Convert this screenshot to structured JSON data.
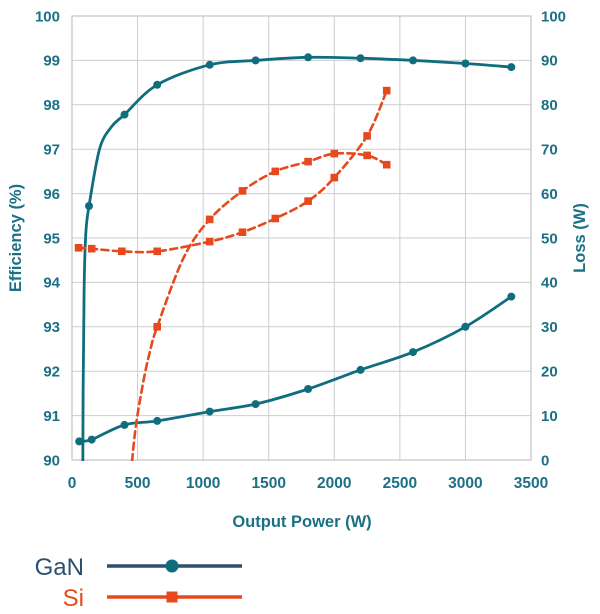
{
  "colors": {
    "gan": "#0f6e7d",
    "si": "#e5491d",
    "gan_legend": "#2d4f6e",
    "si_legend": "#e5491d",
    "axis_label": "#1b7086",
    "grid": "#cbcecf",
    "border": "#c0c4c5",
    "background": "#ffffff"
  },
  "chart_data": {
    "type": "line",
    "title": "",
    "xlabel": "Output Power (W)",
    "ylabel_left": "Efficiency (%)",
    "ylabel_right": "Loss (W)",
    "x_range": [
      0,
      3500
    ],
    "x_ticks": [
      0,
      500,
      1000,
      1500,
      2000,
      2500,
      3000,
      3500
    ],
    "y_left_range": [
      90,
      100
    ],
    "y_left_ticks": [
      90,
      91,
      92,
      93,
      94,
      95,
      96,
      97,
      98,
      99,
      100
    ],
    "y_right_range": [
      0,
      100
    ],
    "y_right_ticks": [
      0,
      10,
      20,
      30,
      40,
      50,
      60,
      70,
      80,
      90,
      100
    ],
    "grid": true,
    "legend_position": "bottom-left",
    "series": [
      {
        "id": "gan-efficiency",
        "name": "GaN",
        "quantity": "efficiency",
        "axis": "left",
        "line": "solid",
        "marker": "circle",
        "color": "gan",
        "points": [
          [
            130,
            95.72
          ],
          [
            400,
            97.78
          ],
          [
            650,
            98.45
          ],
          [
            1050,
            98.9
          ],
          [
            1400,
            99.0
          ],
          [
            1800,
            99.07
          ],
          [
            2200,
            99.05
          ],
          [
            2600,
            99.0
          ],
          [
            3000,
            98.93
          ],
          [
            3350,
            98.85
          ]
        ],
        "shape_anchors": [
          [
            80,
            87.5
          ],
          [
            85,
            91.5
          ],
          [
            92,
            93.8
          ],
          [
            105,
            95.1
          ],
          [
            210,
            97.0
          ],
          [
            300,
            97.5
          ]
        ]
      },
      {
        "id": "gan-loss",
        "name": "GaN",
        "quantity": "loss",
        "axis": "right",
        "line": "solid",
        "marker": "circle",
        "color": "gan",
        "points": [
          [
            55,
            4.2
          ],
          [
            150,
            4.6
          ],
          [
            400,
            7.9
          ],
          [
            650,
            8.8
          ],
          [
            1050,
            10.9
          ],
          [
            1400,
            12.6
          ],
          [
            1800,
            16.0
          ],
          [
            2200,
            20.3
          ],
          [
            2600,
            24.3
          ],
          [
            3000,
            30.0
          ],
          [
            3350,
            36.8
          ]
        ],
        "shape_anchors": []
      },
      {
        "id": "si-efficiency",
        "name": "Si",
        "quantity": "efficiency",
        "axis": "left",
        "line": "dashed",
        "marker": "square",
        "color": "si",
        "points": [
          [
            650,
            93.0
          ],
          [
            1050,
            95.42
          ],
          [
            1300,
            96.06
          ],
          [
            1550,
            96.5
          ],
          [
            1800,
            96.72
          ],
          [
            2000,
            96.9
          ],
          [
            2250,
            96.86
          ],
          [
            2400,
            96.65
          ]
        ],
        "shape_anchors": [
          [
            435,
            89.2
          ],
          [
            480,
            90.6
          ],
          [
            540,
            91.7
          ],
          [
            595,
            92.45
          ],
          [
            850,
            94.55
          ]
        ]
      },
      {
        "id": "si-loss",
        "name": "Si",
        "quantity": "loss",
        "axis": "right",
        "line": "dashed",
        "marker": "square",
        "color": "si",
        "points": [
          [
            50,
            47.8
          ],
          [
            150,
            47.6
          ],
          [
            380,
            47.0
          ],
          [
            650,
            47.0
          ],
          [
            1050,
            49.2
          ],
          [
            1300,
            51.3
          ],
          [
            1550,
            54.4
          ],
          [
            1800,
            58.3
          ],
          [
            2000,
            63.6
          ],
          [
            2250,
            73.0
          ],
          [
            2400,
            83.2
          ]
        ],
        "shape_anchors": []
      }
    ]
  }
}
